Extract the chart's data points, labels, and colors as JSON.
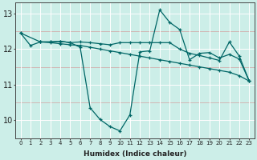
{
  "xlabel": "Humidex (Indice chaleur)",
  "bg_color": "#cceee8",
  "line_color": "#006666",
  "xlim": [
    -0.5,
    23.5
  ],
  "ylim": [
    9.5,
    13.3
  ],
  "yticks": [
    10,
    11,
    12,
    13
  ],
  "xticks": [
    0,
    1,
    2,
    3,
    4,
    5,
    6,
    7,
    8,
    9,
    10,
    11,
    12,
    13,
    14,
    15,
    16,
    17,
    18,
    19,
    20,
    21,
    22,
    23
  ],
  "series1_x": [
    0,
    1,
    2,
    3,
    4,
    5,
    6,
    7,
    8,
    9,
    10,
    11,
    12,
    13,
    14,
    15,
    16,
    17,
    18,
    19,
    20,
    21,
    22,
    23
  ],
  "series1_y": [
    12.45,
    12.1,
    12.2,
    12.2,
    12.22,
    12.18,
    12.05,
    10.35,
    10.02,
    9.82,
    9.7,
    10.15,
    11.92,
    11.95,
    13.1,
    12.75,
    12.55,
    11.7,
    11.88,
    11.9,
    11.75,
    11.85,
    11.72,
    11.1
  ],
  "series2_x": [
    2,
    3,
    4,
    5,
    6,
    7,
    8,
    9,
    10,
    11,
    12,
    13,
    14,
    15,
    16,
    17,
    18,
    19,
    20,
    21,
    22,
    23
  ],
  "series2_y": [
    12.2,
    12.2,
    12.22,
    12.18,
    12.2,
    12.18,
    12.15,
    12.12,
    12.18,
    12.18,
    12.18,
    12.18,
    12.18,
    12.18,
    12.0,
    11.88,
    11.82,
    11.75,
    11.68,
    12.2,
    11.8,
    11.1
  ],
  "series3_x": [
    0,
    2,
    3,
    4,
    5,
    6,
    7,
    8,
    9,
    10,
    11,
    12,
    13,
    14,
    15,
    16,
    17,
    18,
    19,
    20,
    21,
    22,
    23
  ],
  "series3_y": [
    12.45,
    12.2,
    12.18,
    12.15,
    12.12,
    12.1,
    12.05,
    12.0,
    11.95,
    11.9,
    11.85,
    11.8,
    11.75,
    11.7,
    11.65,
    11.6,
    11.55,
    11.5,
    11.45,
    11.4,
    11.35,
    11.25,
    11.1
  ]
}
